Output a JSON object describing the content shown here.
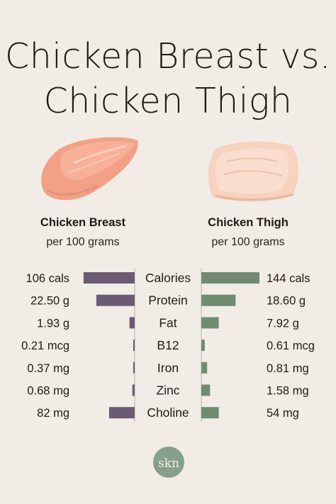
{
  "title": {
    "line1": "Chicken Breast vs.",
    "line2": "Chicken Thigh"
  },
  "left_column": {
    "heading": "Chicken Breast",
    "subheading": "per 100 grams"
  },
  "right_column": {
    "heading": "Chicken Thigh",
    "subheading": "per 100 grams"
  },
  "colors": {
    "background": "#f1ede6",
    "breast_bar": "#6b5a74",
    "thigh_bar": "#6f8c73",
    "breast_meat": "#f2a187",
    "thigh_meat": "#f6d2bf",
    "logo": "#86a08b"
  },
  "logo": {
    "text": "skn"
  },
  "chart_data": {
    "type": "bar",
    "orientation": "horizontal-butterfly",
    "categories": [
      "Calories",
      "Protein",
      "Fat",
      "B12",
      "Iron",
      "Zinc",
      "Choline"
    ],
    "series": [
      {
        "name": "Chicken Breast",
        "values": [
          106,
          22.5,
          1.93,
          0.21,
          0.37,
          0.68,
          82
        ],
        "labels": [
          "106 cals",
          "22.50 g",
          "1.93 g",
          "0.21 mcg",
          "0.37 mg",
          "0.68 mg",
          "82 mg"
        ]
      },
      {
        "name": "Chicken Thigh",
        "values": [
          144,
          18.6,
          7.92,
          0.61,
          0.81,
          1.58,
          54
        ],
        "labels": [
          "144 cals",
          "18.60 g",
          "7.92 g",
          "0.61 mcg",
          "0.81 mg",
          "1.58 mg",
          "54 mg"
        ]
      }
    ],
    "relative_lengths": {
      "breast": [
        0.88,
        0.66,
        0.09,
        0.025,
        0.025,
        0.04,
        0.44
      ],
      "thigh": [
        1.0,
        0.59,
        0.3,
        0.06,
        0.1,
        0.15,
        0.3
      ]
    }
  }
}
